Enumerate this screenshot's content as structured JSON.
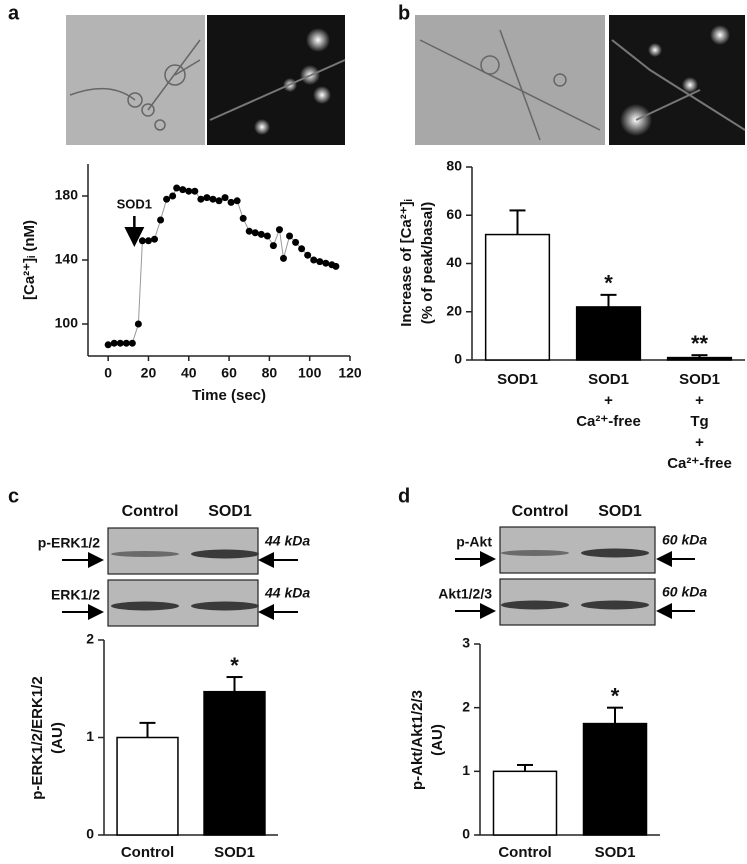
{
  "panels": {
    "labels": [
      "a",
      "b",
      "c",
      "d"
    ]
  },
  "blots": [
    {
      "lanes": [
        "Control",
        "SOD1"
      ],
      "rows": [
        {
          "name": "p-ERK1/2",
          "size": "44 kDa"
        },
        {
          "name": "ERK1/2",
          "size": "44 kDa"
        }
      ]
    },
    {
      "lanes": [
        "Control",
        "SOD1"
      ],
      "rows": [
        {
          "name": "p-Akt",
          "size": "60 kDa"
        },
        {
          "name": "Akt1/2/3",
          "size": "60 kDa"
        }
      ]
    }
  ],
  "chart_data": [
    {
      "type": "line",
      "x_label": "Time (sec)",
      "y_label": [
        "[Ca²⁺]ᵢ (nM)"
      ],
      "x": [
        0,
        3,
        6,
        9,
        12,
        15,
        17,
        20,
        23,
        26,
        29,
        32,
        34,
        37,
        40,
        43,
        46,
        49,
        52,
        55,
        58,
        61,
        64,
        67,
        70,
        73,
        76,
        79,
        82,
        85,
        87,
        90,
        93,
        96,
        99,
        102,
        105,
        108,
        111,
        113
      ],
      "values": [
        87,
        88,
        88,
        88,
        88,
        100,
        152,
        152,
        153,
        165,
        178,
        180,
        185,
        184,
        183,
        183,
        178,
        179,
        178,
        177,
        179,
        176,
        177,
        166,
        158,
        157,
        156,
        155,
        149,
        159,
        141,
        155,
        151,
        147,
        143,
        140,
        139,
        138,
        137,
        136
      ],
      "color": "#000000",
      "xlim": [
        -10,
        120
      ],
      "xticks": [
        0,
        20,
        40,
        60,
        80,
        100,
        120
      ],
      "ylim": [
        80,
        200
      ],
      "yticks": [
        100,
        140,
        180
      ],
      "annotations": [
        {
          "text": "SOD1",
          "x": 13
        }
      ]
    },
    {
      "type": "bar",
      "y_label": [
        "Increase of [Ca²⁺]ᵢ",
        "(% of peak/basal)"
      ],
      "categories": [
        [
          "SOD1"
        ],
        [
          "SOD1",
          "+",
          "Ca²⁺-free"
        ],
        [
          "SOD1",
          "+",
          "Tg",
          "+",
          "Ca²⁺-free"
        ]
      ],
      "values": [
        52,
        22,
        1
      ],
      "errors": [
        10,
        5,
        1
      ],
      "colors": [
        "#ffffff",
        "#000000",
        "#000000"
      ],
      "annotations": [
        null,
        "*",
        "**"
      ],
      "ylim": [
        0,
        80
      ],
      "yticks": [
        0,
        20,
        40,
        60,
        80
      ]
    },
    {
      "type": "bar",
      "y_label": [
        "p-ERK1/2/ERK1/2",
        "(AU)"
      ],
      "categories": [
        [
          "Control"
        ],
        [
          "SOD1"
        ]
      ],
      "values": [
        1.0,
        1.47
      ],
      "errors": [
        0.15,
        0.15
      ],
      "colors": [
        "#ffffff",
        "#000000"
      ],
      "annotations": [
        null,
        "*"
      ],
      "ylim": [
        0,
        2
      ],
      "yticks": [
        0,
        1,
        2
      ]
    },
    {
      "type": "bar",
      "y_label": [
        "p-Akt/Akt1/2/3",
        "(AU)"
      ],
      "categories": [
        [
          "Control"
        ],
        [
          "SOD1"
        ]
      ],
      "values": [
        1.0,
        1.75
      ],
      "errors": [
        0.1,
        0.25
      ],
      "colors": [
        "#ffffff",
        "#000000"
      ],
      "annotations": [
        null,
        "*"
      ],
      "ylim": [
        0,
        3
      ],
      "yticks": [
        0,
        1,
        2,
        3
      ]
    }
  ]
}
